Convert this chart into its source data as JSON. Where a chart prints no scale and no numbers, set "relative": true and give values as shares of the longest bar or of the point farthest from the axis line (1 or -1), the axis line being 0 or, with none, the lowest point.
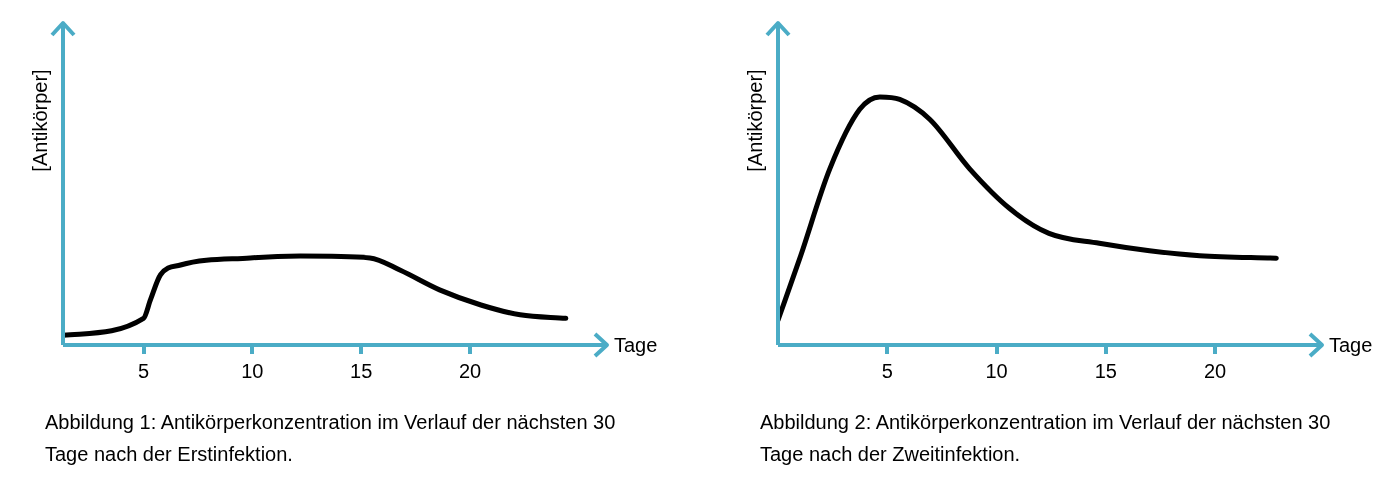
{
  "chart_data": [
    {
      "type": "line",
      "ylabel": "[Antikörper]",
      "xlabel": "Tage",
      "annotations": [
        "Abbildung 1: Antikörperkonzentration im Verlauf der nächsten 30 Tage nach der Erstinfektion."
      ],
      "relative": true,
      "xlim": [
        1.3,
        26.2
      ],
      "xticks": [
        5,
        10,
        15,
        20
      ],
      "grid": false,
      "legend": false,
      "series": [
        {
          "color": "#000000",
          "x": [
            1.33,
            5,
            5.32,
            5.78,
            6.7,
            9.9,
            12.2,
            15.4,
            16.8,
            18.6,
            20.5,
            22.3,
            24.4
          ],
          "values": [
            0.11,
            0.3,
            0.51,
            0.79,
            0.9,
            0.98,
            1,
            0.98,
            0.84,
            0.62,
            0.45,
            0.34,
            0.3
          ]
        }
      ]
    },
    {
      "type": "line",
      "ylabel": "[Antikörper]",
      "xlabel": "Tage",
      "annotations": [
        "Abbildung 2: Antikörperkonzentration im Verlauf der nächsten 30 Tage nach der Zweitinfektion."
      ],
      "relative": true,
      "xlim": [
        0,
        24.8
      ],
      "xticks": [
        5,
        10,
        15,
        20
      ],
      "grid": false,
      "legend": false,
      "series": [
        {
          "color": "#000000",
          "x": [
            0,
            1,
            2.37,
            3.74,
            4.66,
            5.57,
            6.94,
            8.77,
            10.6,
            12.4,
            14.7,
            17,
            19.3,
            22.8
          ],
          "values": [
            0.1,
            0.35,
            0.71,
            0.95,
            1,
            0.99,
            0.91,
            0.71,
            0.55,
            0.45,
            0.41,
            0.38,
            0.36,
            0.35
          ]
        }
      ]
    }
  ]
}
